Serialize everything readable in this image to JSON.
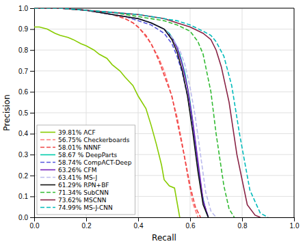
{
  "chart_data": {
    "type": "line",
    "xlabel": "Recall",
    "ylabel": "Precision",
    "xlim": [
      0,
      1
    ],
    "ylim": [
      0,
      1
    ],
    "xticks": [
      {
        "value": 0,
        "label": "0.0"
      },
      0.2,
      0.4,
      0.6,
      0.8,
      {
        "value": 1.0,
        "label": "1.0"
      }
    ],
    "yticks": [
      {
        "value": 0,
        "label": "0.0"
      },
      0.1,
      0.2,
      0.3,
      0.4,
      0.5,
      0.6,
      0.7,
      0.8,
      0.9,
      {
        "value": 1.0,
        "label": "1.0"
      }
    ],
    "grid": true,
    "legend": "lower left",
    "series": [
      {
        "name": "39.81% ACF",
        "color": "#88cc00",
        "line_style": "solid",
        "x": [
          0.0,
          0.02,
          0.05,
          0.08,
          0.1,
          0.13,
          0.15,
          0.18,
          0.2,
          0.23,
          0.25,
          0.28,
          0.3,
          0.33,
          0.35,
          0.38,
          0.4,
          0.43,
          0.45,
          0.47,
          0.49,
          0.5,
          0.52,
          0.54,
          0.56
        ],
        "values": [
          0.91,
          0.91,
          0.9,
          0.88,
          0.87,
          0.86,
          0.85,
          0.83,
          0.82,
          0.8,
          0.78,
          0.76,
          0.73,
          0.7,
          0.67,
          0.63,
          0.58,
          0.52,
          0.44,
          0.35,
          0.25,
          0.18,
          0.15,
          0.14,
          0.0
        ]
      },
      {
        "name": "56.75% Checkerboards",
        "color": "#ff7777",
        "line_style": "dashed",
        "x": [
          0.0,
          0.05,
          0.1,
          0.2,
          0.3,
          0.35,
          0.38,
          0.4,
          0.42,
          0.45,
          0.48,
          0.5,
          0.52,
          0.55,
          0.57,
          0.59,
          0.61,
          0.63
        ],
        "values": [
          1.0,
          1.0,
          1.0,
          0.99,
          0.97,
          0.95,
          0.93,
          0.91,
          0.88,
          0.83,
          0.76,
          0.7,
          0.62,
          0.48,
          0.35,
          0.2,
          0.07,
          0.0
        ]
      },
      {
        "name": "58.01% NNNF",
        "color": "#ee4444",
        "line_style": "dashed",
        "x": [
          0.0,
          0.05,
          0.1,
          0.2,
          0.3,
          0.35,
          0.38,
          0.4,
          0.43,
          0.45,
          0.48,
          0.5,
          0.53,
          0.55,
          0.58,
          0.6,
          0.62,
          0.64
        ],
        "values": [
          1.0,
          1.0,
          1.0,
          0.99,
          0.97,
          0.95,
          0.93,
          0.91,
          0.87,
          0.83,
          0.75,
          0.68,
          0.58,
          0.46,
          0.28,
          0.15,
          0.05,
          0.0
        ]
      },
      {
        "name": "58.67 % DeepParts",
        "color": "#00ccaa",
        "line_style": "solid",
        "x": [
          0.0,
          0.05,
          0.1,
          0.2,
          0.3,
          0.35,
          0.4,
          0.45,
          0.5,
          0.52,
          0.54,
          0.56,
          0.58,
          0.6,
          0.62,
          0.64,
          0.66,
          0.67
        ],
        "values": [
          1.0,
          1.0,
          1.0,
          0.99,
          0.97,
          0.96,
          0.95,
          0.93,
          0.9,
          0.88,
          0.84,
          0.78,
          0.69,
          0.55,
          0.36,
          0.15,
          0.03,
          0.0
        ]
      },
      {
        "name": "58.74% CompACT-Deep",
        "color": "#5555dd",
        "line_style": "dashed",
        "x": [
          0.0,
          0.05,
          0.1,
          0.2,
          0.3,
          0.35,
          0.4,
          0.45,
          0.5,
          0.53,
          0.55,
          0.57,
          0.59,
          0.61,
          0.63,
          0.65,
          0.67
        ],
        "values": [
          1.0,
          1.0,
          1.0,
          0.99,
          0.97,
          0.96,
          0.94,
          0.92,
          0.88,
          0.83,
          0.77,
          0.69,
          0.58,
          0.43,
          0.25,
          0.08,
          0.0
        ]
      },
      {
        "name": "63.26% CFM",
        "color": "#7722bb",
        "line_style": "solid",
        "x": [
          0.0,
          0.05,
          0.1,
          0.2,
          0.3,
          0.35,
          0.4,
          0.45,
          0.5,
          0.53,
          0.55,
          0.57,
          0.59,
          0.61,
          0.63,
          0.65,
          0.67
        ],
        "values": [
          1.0,
          1.0,
          1.0,
          0.99,
          0.97,
          0.96,
          0.95,
          0.93,
          0.9,
          0.86,
          0.81,
          0.73,
          0.62,
          0.46,
          0.27,
          0.08,
          0.0
        ]
      },
      {
        "name": "63.41% MS-J",
        "color": "#bbbbee",
        "line_style": "dashed",
        "x": [
          0.0,
          0.05,
          0.1,
          0.2,
          0.3,
          0.35,
          0.4,
          0.45,
          0.5,
          0.53,
          0.56,
          0.58,
          0.6,
          0.62,
          0.64,
          0.66,
          0.68,
          0.7
        ],
        "values": [
          1.0,
          1.0,
          1.0,
          0.99,
          0.97,
          0.96,
          0.95,
          0.93,
          0.9,
          0.86,
          0.8,
          0.73,
          0.62,
          0.48,
          0.3,
          0.12,
          0.03,
          0.0
        ]
      },
      {
        "name": "61.29% RPN+BF",
        "color": "#111111",
        "line_style": "solid",
        "x": [
          0.0,
          0.05,
          0.1,
          0.2,
          0.3,
          0.35,
          0.4,
          0.45,
          0.5,
          0.53,
          0.55,
          0.57,
          0.59,
          0.61,
          0.63,
          0.65,
          0.67
        ],
        "values": [
          1.0,
          1.0,
          1.0,
          0.99,
          0.97,
          0.96,
          0.95,
          0.93,
          0.9,
          0.85,
          0.79,
          0.7,
          0.58,
          0.41,
          0.22,
          0.06,
          0.0
        ]
      },
      {
        "name": "71.34% SubCNN",
        "color": "#33bb33",
        "line_style": "dashed",
        "x": [
          0.0,
          0.05,
          0.1,
          0.2,
          0.3,
          0.4,
          0.5,
          0.55,
          0.6,
          0.63,
          0.65,
          0.68,
          0.7,
          0.73,
          0.75,
          0.77
        ],
        "values": [
          1.0,
          1.0,
          1.0,
          0.99,
          0.98,
          0.96,
          0.94,
          0.92,
          0.89,
          0.84,
          0.78,
          0.6,
          0.4,
          0.15,
          0.04,
          0.0
        ]
      },
      {
        "name": "73.62% MSCNN",
        "color": "#882244",
        "line_style": "solid",
        "x": [
          0.0,
          0.05,
          0.1,
          0.2,
          0.3,
          0.4,
          0.5,
          0.55,
          0.6,
          0.65,
          0.68,
          0.7,
          0.72,
          0.75,
          0.78,
          0.82,
          0.85,
          0.87
        ],
        "values": [
          1.0,
          1.0,
          1.0,
          0.99,
          0.98,
          0.97,
          0.95,
          0.93,
          0.91,
          0.88,
          0.85,
          0.8,
          0.72,
          0.55,
          0.3,
          0.06,
          0.01,
          0.0
        ]
      },
      {
        "name": "74.99% MS-J-CNN",
        "color": "#00bbbb",
        "line_style": "dashed",
        "x": [
          0.0,
          0.05,
          0.1,
          0.2,
          0.3,
          0.4,
          0.5,
          0.55,
          0.6,
          0.65,
          0.68,
          0.7,
          0.73,
          0.76,
          0.79,
          0.83,
          0.87,
          0.9
        ],
        "values": [
          1.0,
          1.0,
          1.0,
          0.99,
          0.98,
          0.97,
          0.95,
          0.94,
          0.92,
          0.89,
          0.87,
          0.84,
          0.77,
          0.63,
          0.4,
          0.13,
          0.02,
          0.0
        ]
      }
    ]
  }
}
